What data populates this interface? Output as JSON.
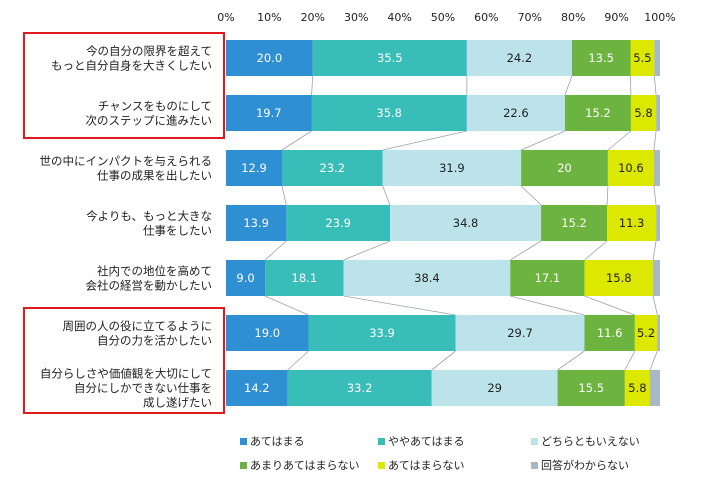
{
  "chart_data": {
    "type": "bar",
    "stacked": true,
    "orientation": "horizontal",
    "title": "",
    "xlabel": "",
    "ylabel": "",
    "xlim": [
      0,
      100
    ],
    "x_ticks": [
      "0%",
      "10%",
      "20%",
      "30%",
      "40%",
      "50%",
      "60%",
      "70%",
      "80%",
      "90%",
      "100%"
    ],
    "grid": false,
    "legend_position": "bottom",
    "categories": [
      [
        "今の自分の限界を超えて",
        "もっと自分自身を大きくしたい"
      ],
      [
        "チャンスをものにして",
        "次のステップに進みたい"
      ],
      [
        "世の中にインパクトを与えられる",
        "仕事の成果を出したい"
      ],
      [
        "今よりも、もっと大きな",
        "仕事をしたい"
      ],
      [
        "社内での地位を高めて",
        "会社の経営を動かしたい"
      ],
      [
        "周囲の人の役に立てるように",
        "自分の力を活かしたい"
      ],
      [
        "自分らしさや価値観を大切にして",
        "自分にしかできない仕事を",
        "成し遂げたい"
      ]
    ],
    "highlighted_groups": [
      [
        0,
        1
      ],
      [
        5,
        6
      ]
    ],
    "series": [
      {
        "name": "あてはまる",
        "color": "#2e8fd3",
        "label_color": "#ffffff",
        "values": [
          20.0,
          19.7,
          12.9,
          13.9,
          9.0,
          19.0,
          14.2
        ],
        "labels": [
          "20.0",
          "19.7",
          "12.9",
          "13.9",
          "9.0",
          "19.0",
          "14.2"
        ]
      },
      {
        "name": "ややあてはまる",
        "color": "#38bdb8",
        "label_color": "#ffffff",
        "values": [
          35.5,
          35.8,
          23.2,
          23.9,
          18.1,
          33.9,
          33.2
        ],
        "labels": [
          "35.5",
          "35.8",
          "23.2",
          "23.9",
          "18.1",
          "33.9",
          "33.2"
        ]
      },
      {
        "name": "どちらともいえない",
        "color": "#bde3ea",
        "label_color": "#222222",
        "values": [
          24.2,
          22.6,
          31.9,
          34.8,
          38.4,
          29.7,
          29
        ],
        "labels": [
          "24.2",
          "22.6",
          "31.9",
          "34.8",
          "38.4",
          "29.7",
          "29"
        ]
      },
      {
        "name": "あまりあてはまらない",
        "color": "#6db33f",
        "label_color": "#ffffff",
        "values": [
          13.5,
          15.2,
          20,
          15.2,
          17.1,
          11.6,
          15.5
        ],
        "labels": [
          "13.5",
          "15.2",
          "20",
          "15.2",
          "17.1",
          "11.6",
          "15.5"
        ]
      },
      {
        "name": "あてはまらない",
        "color": "#dce800",
        "label_color": "#222222",
        "values": [
          5.5,
          5.8,
          10.6,
          11.3,
          15.8,
          5.2,
          5.8
        ],
        "labels": [
          "5.5",
          "5.8",
          "10.6",
          "11.3",
          "15.8",
          "5.2",
          "5.8"
        ]
      },
      {
        "name": "回答がわからない",
        "color": "#a9b8c6",
        "label_color": "#222222",
        "values": [
          1.3,
          0.9,
          1.4,
          0.9,
          1.6,
          0.6,
          2.3
        ],
        "labels": [
          "",
          "",
          "",
          "",
          "",
          "",
          ""
        ]
      }
    ]
  }
}
